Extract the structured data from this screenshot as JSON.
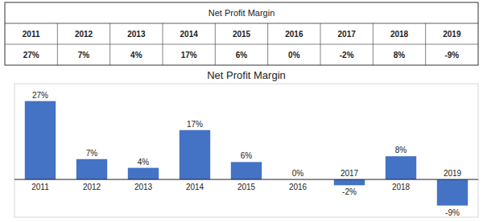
{
  "chart_data": {
    "type": "bar",
    "title": "Net Profit Margin",
    "categories": [
      "2011",
      "2012",
      "2013",
      "2014",
      "2015",
      "2016",
      "2017",
      "2018",
      "2019"
    ],
    "values": [
      27,
      7,
      4,
      17,
      6,
      0,
      -2,
      8,
      -9
    ],
    "value_labels": [
      "27%",
      "7%",
      "4%",
      "17%",
      "6%",
      "0%",
      "-2%",
      "8%",
      "-9%"
    ],
    "color": "#4472C4",
    "ylim": [
      -13,
      33
    ],
    "data_labels": true,
    "tick_labels": "x",
    "grid": false
  }
}
